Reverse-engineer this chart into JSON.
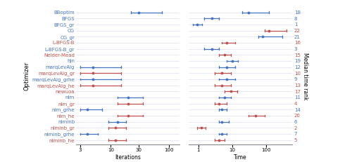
{
  "optimizers": [
    "BBoptim",
    "BFGS",
    "BFGS_gr",
    "CG",
    "CG_gr",
    "L-BFGS-B",
    "L-BFGS-B_gr",
    "Nelder-Mead",
    "hjn",
    "marqLevAlg",
    "marqLevAlg_gr",
    "marqLevAlg_grhe",
    "marqLevAlg_he",
    "newuoa",
    "nlm",
    "nlm_gr",
    "nlm_grhe",
    "nlm_he",
    "nlminb",
    "nlminb_gr",
    "nlminb_grhe",
    "nlminb_he"
  ],
  "label_colors": [
    "#4472C4",
    "#4472C4",
    "#4472C4",
    "#4472C4",
    "#4472C4",
    "#C0504D",
    "#4472C4",
    "#C0504D",
    "#4472C4",
    "#4472C4",
    "#C0504D",
    "#4472C4",
    "#C0504D",
    "#C0504D",
    "#4472C4",
    "#C0504D",
    "#4472C4",
    "#C0504D",
    "#4472C4",
    "#C0504D",
    "#4472C4",
    "#C0504D"
  ],
  "iter": [
    {
      "med": 30,
      "lo": 22,
      "hi": 75,
      "col": "#4472C4"
    },
    {
      "med": null
    },
    {
      "med": null
    },
    {
      "med": null
    },
    {
      "med": null
    },
    {
      "med": null
    },
    {
      "med": null
    },
    {
      "med": null
    },
    {
      "med": null
    },
    {
      "med": 5,
      "lo": 3,
      "hi": 15,
      "col": "#4472C4"
    },
    {
      "med": 5,
      "lo": 3,
      "hi": 15,
      "col": "#C0504D"
    },
    {
      "med": 5,
      "lo": 3,
      "hi": 15,
      "col": "#4472C4"
    },
    {
      "med": 5,
      "lo": 3,
      "hi": 15,
      "col": "#C0504D"
    },
    {
      "med": null
    },
    {
      "med": 20,
      "lo": 13,
      "hi": 35,
      "col": "#4472C4"
    },
    {
      "med": 20,
      "lo": 13,
      "hi": 35,
      "col": "#C0504D"
    },
    {
      "med": 4,
      "lo": 3,
      "hi": 7,
      "col": "#4472C4"
    },
    {
      "med": 20,
      "lo": 13,
      "hi": 35,
      "col": "#C0504D"
    },
    {
      "med": 13,
      "lo": 9,
      "hi": 18,
      "col": "#4472C4"
    },
    {
      "med": 12,
      "lo": 9,
      "hi": 18,
      "col": "#C0504D"
    },
    {
      "med": 4,
      "lo": 3,
      "hi": 6,
      "col": "#4472C4"
    },
    {
      "med": 12,
      "lo": 9,
      "hi": 18,
      "col": "#C0504D"
    }
  ],
  "time": [
    {
      "med": 30,
      "lo": 20,
      "hi": 120,
      "col": "#4472C4"
    },
    {
      "med": 2.5,
      "lo": 1.5,
      "hi": 4,
      "col": "#4472C4"
    },
    {
      "med": 0.9,
      "lo": 0.7,
      "hi": 1.3,
      "col": "#4472C4"
    },
    {
      "med": 120,
      "lo": 90,
      "hi": 400,
      "col": "#C0504D"
    },
    {
      "med": 80,
      "lo": 60,
      "hi": 300,
      "col": "#4472C4"
    },
    {
      "med": 7,
      "lo": 5,
      "hi": 12,
      "col": "#C0504D"
    },
    {
      "med": 2.5,
      "lo": 1.5,
      "hi": 4,
      "col": "#4472C4"
    },
    {
      "med": 6,
      "lo": 4,
      "hi": 9,
      "col": "#C0504D"
    },
    {
      "med": 10,
      "lo": 7,
      "hi": 15,
      "col": "#4472C4"
    },
    {
      "med": 7,
      "lo": 4,
      "hi": 12,
      "col": "#4472C4"
    },
    {
      "med": 5,
      "lo": 3,
      "hi": 9,
      "col": "#C0504D"
    },
    {
      "med": 7,
      "lo": 4,
      "hi": 12,
      "col": "#4472C4"
    },
    {
      "med": 5,
      "lo": 3,
      "hi": 9,
      "col": "#C0504D"
    },
    {
      "med": 9,
      "lo": 6,
      "hi": 14,
      "col": "#C0504D"
    },
    {
      "med": 6,
      "lo": 4,
      "hi": 9,
      "col": "#4472C4"
    },
    {
      "med": 4,
      "lo": 3,
      "hi": 7,
      "col": "#C0504D"
    },
    {
      "med": 5,
      "lo": 4,
      "hi": 7,
      "col": "#4472C4"
    },
    {
      "med": 50,
      "lo": 30,
      "hi": 90,
      "col": "#C0504D"
    },
    {
      "med": 5,
      "lo": 4,
      "hi": 8,
      "col": "#4472C4"
    },
    {
      "med": 1.2,
      "lo": 0.9,
      "hi": 1.6,
      "col": "#C0504D"
    },
    {
      "med": 5,
      "lo": 4,
      "hi": 7,
      "col": "#4472C4"
    },
    {
      "med": 4,
      "lo": 3,
      "hi": 6,
      "col": "#C0504D"
    }
  ],
  "ranks": [
    18,
    8,
    1,
    22,
    21,
    16,
    3,
    15,
    19,
    12,
    10,
    9,
    13,
    17,
    11,
    4,
    14,
    20,
    6,
    2,
    7,
    5
  ],
  "rank_colors": [
    "#4472C4",
    "#4472C4",
    "#4472C4",
    "#C0504D",
    "#4472C4",
    "#C0504D",
    "#4472C4",
    "#C0504D",
    "#4472C4",
    "#4472C4",
    "#C0504D",
    "#4472C4",
    "#C0504D",
    "#C0504D",
    "#4472C4",
    "#C0504D",
    "#4472C4",
    "#C0504D",
    "#4472C4",
    "#C0504D",
    "#4472C4",
    "#C0504D"
  ],
  "blue": "#4472C4",
  "red": "#C0504D",
  "bg": "#f5f5f5"
}
